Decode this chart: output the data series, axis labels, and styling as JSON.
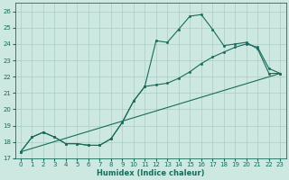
{
  "xlabel": "Humidex (Indice chaleur)",
  "bg_color": "#cce8e0",
  "grid_color": "#aaccc4",
  "line_color": "#1a6b5a",
  "xlim": [
    -0.5,
    23.5
  ],
  "ylim": [
    17,
    26.5
  ],
  "xticks": [
    0,
    1,
    2,
    3,
    4,
    5,
    6,
    7,
    8,
    9,
    10,
    11,
    12,
    13,
    14,
    15,
    16,
    17,
    18,
    19,
    20,
    21,
    22,
    23
  ],
  "yticks": [
    17,
    18,
    19,
    20,
    21,
    22,
    23,
    24,
    25,
    26
  ],
  "line1_x": [
    0,
    1,
    2,
    3,
    4,
    5,
    6,
    7,
    8,
    9,
    10,
    11,
    12,
    13,
    14,
    15,
    16,
    17,
    18,
    19,
    20,
    21,
    22,
    23
  ],
  "line1_y": [
    17.4,
    18.3,
    18.6,
    18.3,
    17.9,
    17.9,
    17.8,
    17.8,
    18.2,
    19.2,
    20.5,
    21.4,
    24.2,
    24.1,
    24.9,
    25.7,
    25.8,
    24.9,
    23.9,
    24.0,
    24.1,
    23.7,
    22.2,
    22.2
  ],
  "line2_x": [
    0,
    1,
    2,
    3,
    4,
    5,
    6,
    7,
    8,
    9,
    10,
    11,
    12,
    13,
    14,
    15,
    16,
    17,
    18,
    19,
    20,
    21,
    22,
    23
  ],
  "line2_y": [
    17.4,
    18.3,
    18.6,
    18.3,
    17.9,
    17.9,
    17.8,
    17.8,
    18.2,
    19.2,
    20.5,
    21.4,
    21.5,
    21.6,
    21.9,
    22.3,
    22.8,
    23.2,
    23.5,
    23.8,
    24.0,
    23.8,
    22.5,
    22.2
  ],
  "line3_x": [
    0,
    23
  ],
  "line3_y": [
    17.4,
    22.2
  ]
}
